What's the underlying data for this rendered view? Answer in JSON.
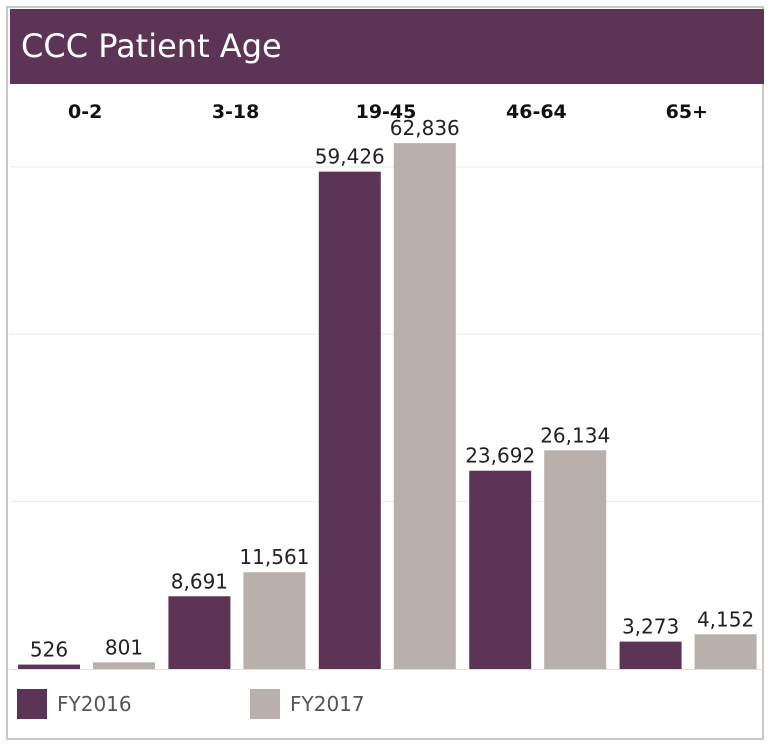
{
  "chart_data": {
    "type": "bar",
    "title": "CCC Patient Age",
    "categories": [
      "0-2",
      "3-18",
      "19-45",
      "46-64",
      "65+"
    ],
    "series": [
      {
        "name": "FY2016",
        "color": "#5b3456",
        "values": [
          526,
          8691,
          59426,
          23692,
          3273
        ],
        "labels": [
          "526",
          "8,691",
          "59,426",
          "23,692",
          "3,273"
        ]
      },
      {
        "name": "FY2017",
        "color": "#b9b0ab",
        "values": [
          801,
          11561,
          62836,
          26134,
          4152
        ],
        "labels": [
          "801",
          "11,561",
          "62,836",
          "26,134",
          "4,152"
        ]
      }
    ],
    "ylim": [
      0,
      65000
    ],
    "gridlines": [
      20000,
      40000,
      60000
    ],
    "grid": true,
    "legend_position": "bottom-left",
    "category_labels_position": "top"
  }
}
